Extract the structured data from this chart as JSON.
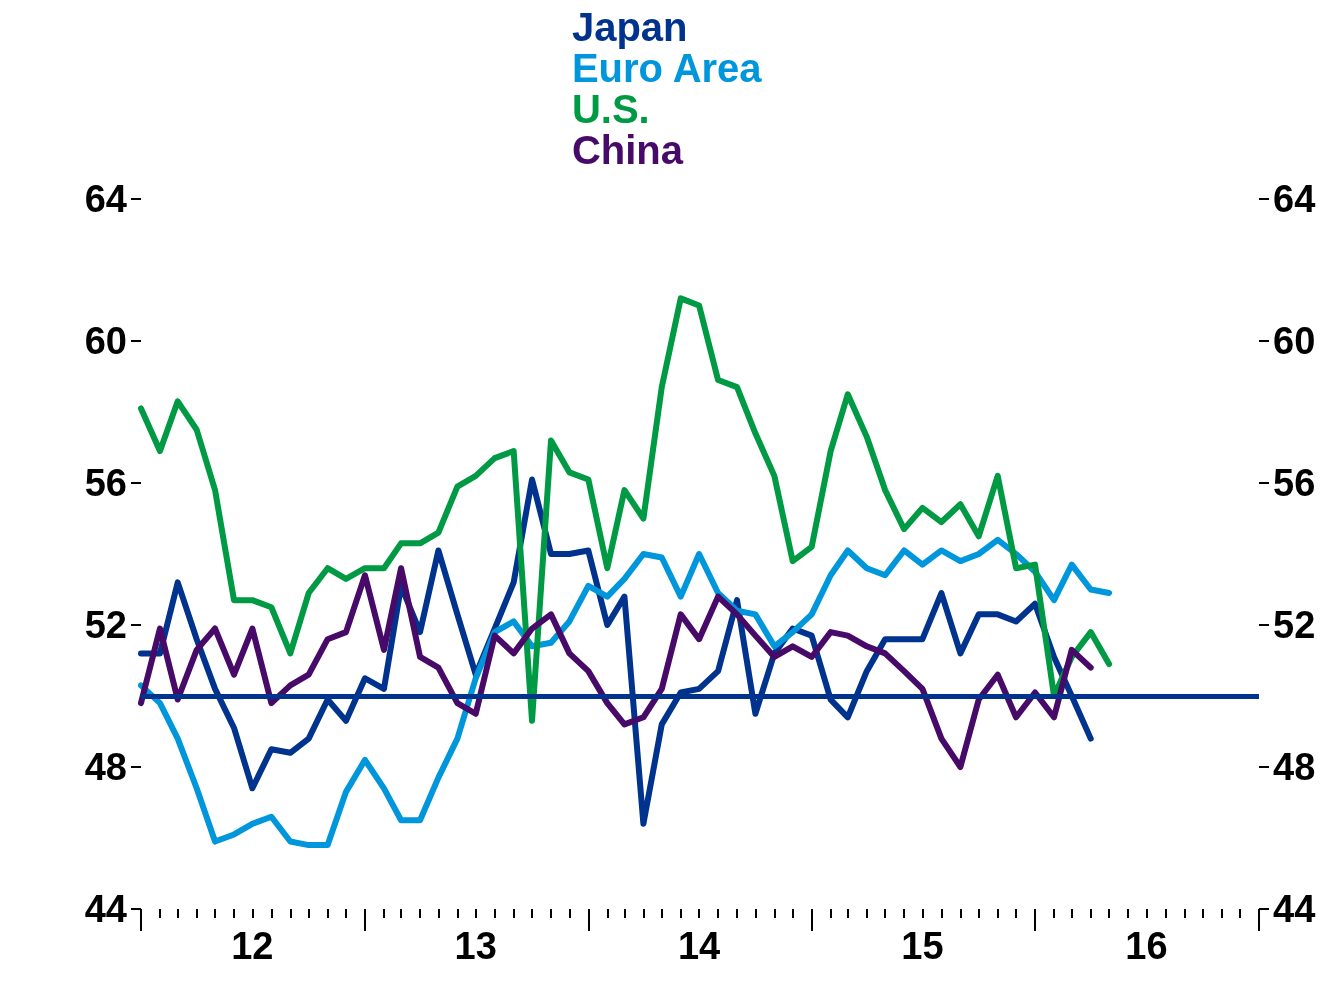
{
  "chart_data": {
    "type": "line",
    "x": [
      "2012-01",
      "2012-02",
      "2012-03",
      "2012-04",
      "2012-05",
      "2012-06",
      "2012-07",
      "2012-08",
      "2012-09",
      "2012-10",
      "2012-11",
      "2012-12",
      "2013-01",
      "2013-02",
      "2013-03",
      "2013-04",
      "2013-05",
      "2013-06",
      "2013-07",
      "2013-08",
      "2013-09",
      "2013-10",
      "2013-11",
      "2013-12",
      "2014-01",
      "2014-02",
      "2014-03",
      "2014-04",
      "2014-05",
      "2014-06",
      "2014-07",
      "2014-08",
      "2014-09",
      "2014-10",
      "2014-11",
      "2014-12",
      "2015-01",
      "2015-02",
      "2015-03",
      "2015-04",
      "2015-05",
      "2015-06",
      "2015-07",
      "2015-08",
      "2015-09",
      "2015-10",
      "2015-11",
      "2015-12",
      "2016-01",
      "2016-02",
      "2016-03",
      "2016-04",
      "2016-05"
    ],
    "series": [
      {
        "name": "Japan",
        "color": "#00338d",
        "values": [
          51.2,
          51.2,
          53.2,
          51.6,
          50.2,
          49.1,
          47.4,
          48.5,
          48.4,
          48.8,
          49.9,
          49.3,
          50.5,
          50.2,
          53.1,
          51.8,
          54.1,
          52.3,
          50.6,
          51.9,
          53.2,
          56.1,
          54.0,
          54.0,
          54.1,
          52.0,
          52.8,
          46.4,
          49.2,
          50.1,
          50.2,
          50.7,
          52.7,
          49.5,
          51.2,
          51.9,
          51.7,
          49.9,
          49.4,
          50.7,
          51.6,
          51.6,
          51.6,
          52.9,
          51.2,
          52.3,
          52.3,
          52.1,
          52.6,
          51.1,
          50.0,
          48.8,
          null
        ]
      },
      {
        "name": "Euro Area",
        "color": "#0096db",
        "values": [
          50.3,
          49.8,
          48.8,
          47.4,
          45.9,
          46.1,
          46.4,
          46.6,
          45.9,
          45.8,
          45.8,
          47.3,
          48.2,
          47.4,
          46.5,
          46.5,
          47.7,
          48.8,
          50.5,
          51.8,
          52.1,
          51.4,
          51.5,
          52.1,
          53.1,
          52.8,
          53.3,
          54.0,
          53.9,
          52.8,
          54.0,
          52.9,
          52.4,
          52.3,
          51.4,
          51.8,
          52.3,
          53.4,
          54.1,
          53.6,
          53.4,
          54.1,
          53.7,
          54.1,
          53.8,
          54.0,
          54.4,
          54.0,
          53.5,
          52.7,
          53.7,
          53.0,
          52.9
        ]
      },
      {
        "name": "U.S.",
        "color": "#009a44",
        "values": [
          58.1,
          56.9,
          58.3,
          57.5,
          55.8,
          52.7,
          52.7,
          52.5,
          51.2,
          52.9,
          53.6,
          53.3,
          53.6,
          53.6,
          54.3,
          54.3,
          54.6,
          55.9,
          56.2,
          56.7,
          56.9,
          49.3,
          57.2,
          56.3,
          56.1,
          53.6,
          55.8,
          55.0,
          58.7,
          61.2,
          61.0,
          58.9,
          58.7,
          57.4,
          56.2,
          53.8,
          54.2,
          56.9,
          58.5,
          57.3,
          55.8,
          54.7,
          55.3,
          54.9,
          55.4,
          54.5,
          56.2,
          53.6,
          53.7,
          50.0,
          51.1,
          51.8,
          50.9
        ]
      },
      {
        "name": "China",
        "color": "#470a68",
        "values": [
          49.8,
          51.9,
          49.9,
          51.3,
          51.9,
          50.6,
          51.9,
          49.8,
          50.3,
          50.6,
          51.6,
          51.8,
          53.4,
          51.3,
          53.6,
          51.1,
          50.8,
          49.8,
          49.5,
          51.7,
          51.2,
          51.9,
          52.3,
          51.2,
          50.7,
          49.8,
          49.2,
          49.4,
          50.2,
          52.3,
          51.6,
          52.8,
          52.3,
          51.7,
          51.1,
          51.4,
          51.1,
          51.8,
          51.7,
          51.4,
          51.2,
          50.7,
          50.2,
          48.8,
          48.0,
          49.9,
          50.6,
          49.4,
          50.1,
          49.4,
          51.3,
          50.8,
          null
        ]
      }
    ],
    "xlim": [
      "2012-01",
      "2017-01"
    ],
    "xticks": [
      {
        "value": "2012-01",
        "label": null
      },
      {
        "value": "2012-02",
        "label": null
      },
      {
        "value": "2012-03",
        "label": null
      },
      {
        "value": "2012-04",
        "label": null
      },
      {
        "value": "2012-05",
        "label": null
      },
      {
        "value": "2012-06",
        "label": null
      },
      {
        "value": "2012-07",
        "label": "12"
      },
      {
        "value": "2012-08",
        "label": null
      },
      {
        "value": "2012-09",
        "label": null
      },
      {
        "value": "2012-10",
        "label": null
      },
      {
        "value": "2012-11",
        "label": null
      },
      {
        "value": "2012-12",
        "label": null
      },
      {
        "value": "2013-01",
        "label": null
      },
      {
        "value": "2013-02",
        "label": null
      },
      {
        "value": "2013-03",
        "label": null
      },
      {
        "value": "2013-04",
        "label": null
      },
      {
        "value": "2013-05",
        "label": null
      },
      {
        "value": "2013-06",
        "label": null
      },
      {
        "value": "2013-07",
        "label": "13"
      },
      {
        "value": "2013-08",
        "label": null
      },
      {
        "value": "2013-09",
        "label": null
      },
      {
        "value": "2013-10",
        "label": null
      },
      {
        "value": "2013-11",
        "label": null
      },
      {
        "value": "2013-12",
        "label": null
      },
      {
        "value": "2014-01",
        "label": null
      },
      {
        "value": "2014-02",
        "label": null
      },
      {
        "value": "2014-03",
        "label": null
      },
      {
        "value": "2014-04",
        "label": null
      },
      {
        "value": "2014-05",
        "label": null
      },
      {
        "value": "2014-06",
        "label": null
      },
      {
        "value": "2014-07",
        "label": "14"
      },
      {
        "value": "2014-08",
        "label": null
      },
      {
        "value": "2014-09",
        "label": null
      },
      {
        "value": "2014-10",
        "label": null
      },
      {
        "value": "2014-11",
        "label": null
      },
      {
        "value": "2014-12",
        "label": null
      },
      {
        "value": "2015-01",
        "label": null
      },
      {
        "value": "2015-02",
        "label": null
      },
      {
        "value": "2015-03",
        "label": null
      },
      {
        "value": "2015-04",
        "label": null
      },
      {
        "value": "2015-05",
        "label": null
      },
      {
        "value": "2015-06",
        "label": null
      },
      {
        "value": "2015-07",
        "label": "15"
      },
      {
        "value": "2015-08",
        "label": null
      },
      {
        "value": "2015-09",
        "label": null
      },
      {
        "value": "2015-10",
        "label": null
      },
      {
        "value": "2015-11",
        "label": null
      },
      {
        "value": "2015-12",
        "label": null
      },
      {
        "value": "2016-01",
        "label": null
      },
      {
        "value": "2016-02",
        "label": null
      },
      {
        "value": "2016-03",
        "label": null
      },
      {
        "value": "2016-04",
        "label": null
      },
      {
        "value": "2016-05",
        "label": null
      },
      {
        "value": "2016-06",
        "label": null
      },
      {
        "value": "2016-07",
        "label": "16"
      },
      {
        "value": "2016-08",
        "label": null
      },
      {
        "value": "2016-09",
        "label": null
      },
      {
        "value": "2016-10",
        "label": null
      },
      {
        "value": "2016-11",
        "label": null
      },
      {
        "value": "2016-12",
        "label": null
      },
      {
        "value": "2017-01",
        "label": null
      }
    ],
    "ylim": [
      44,
      64
    ],
    "yticks": [
      44,
      48,
      52,
      56,
      60,
      64
    ],
    "y2lim": [
      44,
      64
    ],
    "y2ticks": [
      44,
      48,
      52,
      56,
      60,
      64
    ],
    "ref_lines": [
      {
        "axis": "y",
        "value": 50,
        "color": "#00338d"
      }
    ],
    "legend": "top",
    "grid": false,
    "marker": "none",
    "line_style": "solid"
  }
}
